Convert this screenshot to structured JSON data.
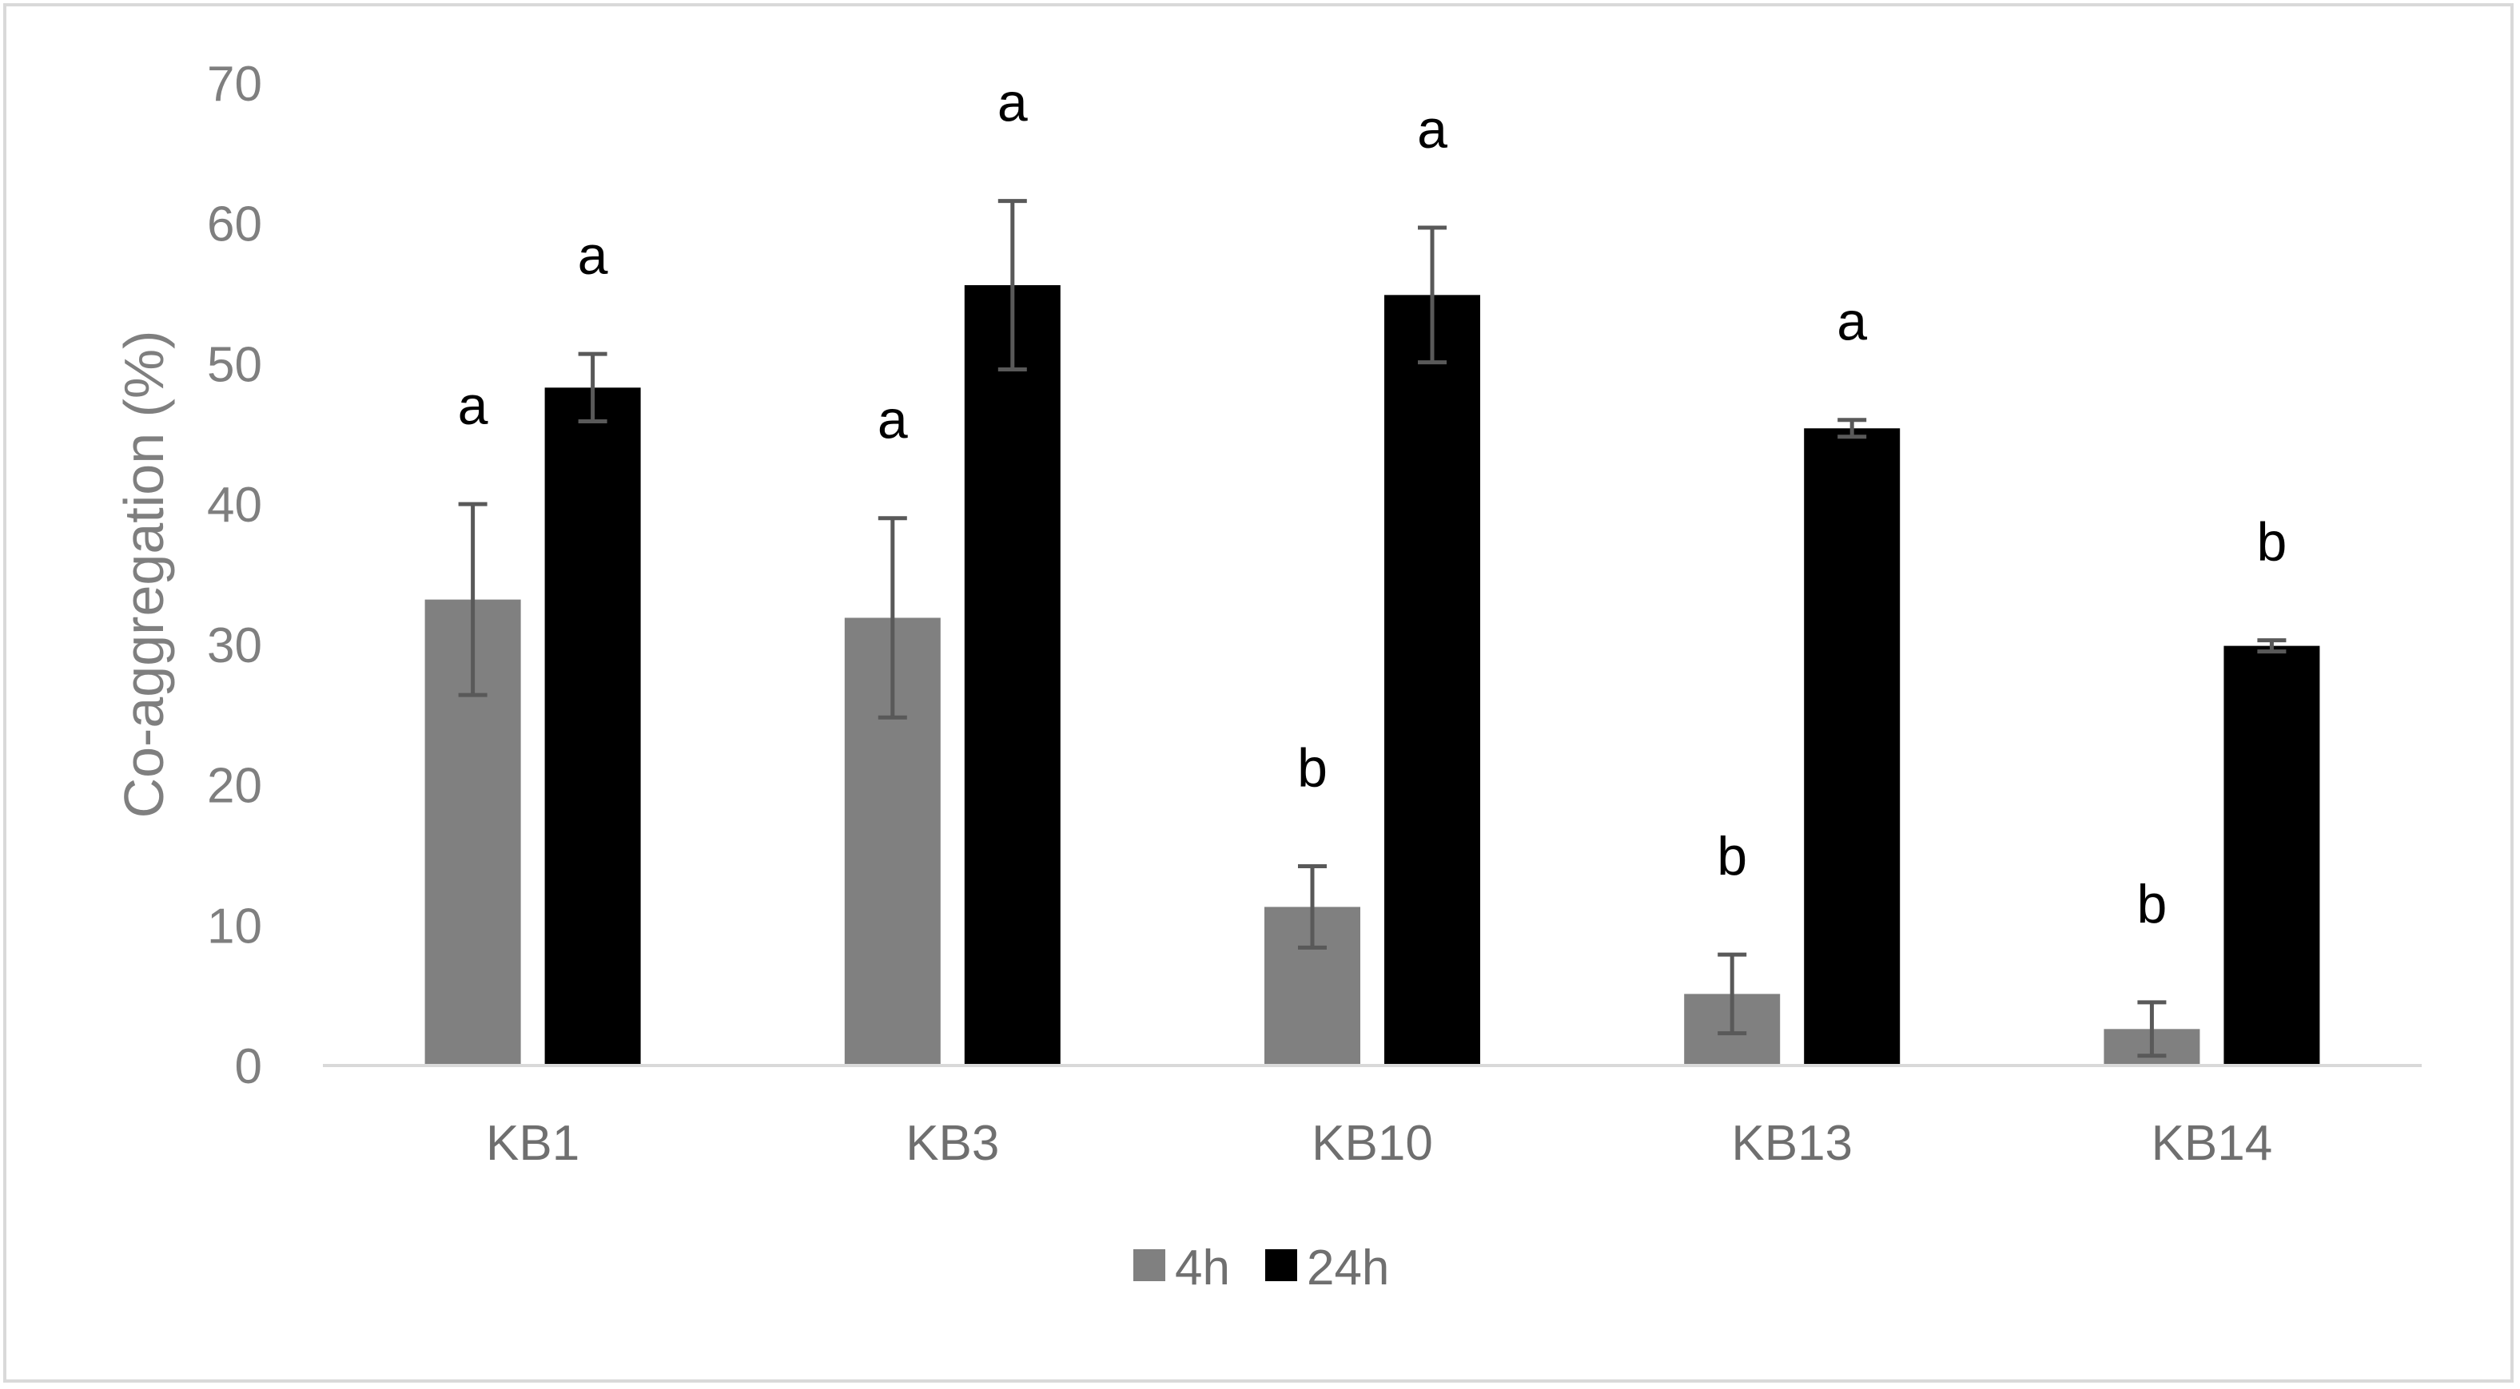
{
  "chart_data": {
    "type": "bar",
    "title": "",
    "xlabel": "",
    "ylabel": "Co-aggregation (%)",
    "ylim": [
      0,
      70
    ],
    "yticks": [
      "0",
      "10",
      "20",
      "30",
      "40",
      "50",
      "60",
      "70"
    ],
    "grid": false,
    "legend_position": "bottom",
    "categories": [
      "KB1",
      "KB3",
      "KB10",
      "KB13",
      "KB14"
    ],
    "series": [
      {
        "name": "4h",
        "color": "#808080",
        "values": [
          33.2,
          31.9,
          11.3,
          5.1,
          2.6
        ],
        "errors": [
          6.8,
          7.1,
          2.9,
          2.8,
          1.9
        ],
        "labels": [
          "a",
          "a",
          "b",
          "b",
          "b"
        ]
      },
      {
        "name": "24h",
        "color": "#000000",
        "values": [
          48.3,
          55.6,
          54.9,
          45.4,
          29.9
        ],
        "errors": [
          2.4,
          6.0,
          4.8,
          0.6,
          0.4
        ],
        "labels": [
          "a",
          "a",
          "a",
          "a",
          "b"
        ]
      }
    ],
    "axis_color": "#d9d9d9",
    "error_bar_color": "#595959"
  }
}
